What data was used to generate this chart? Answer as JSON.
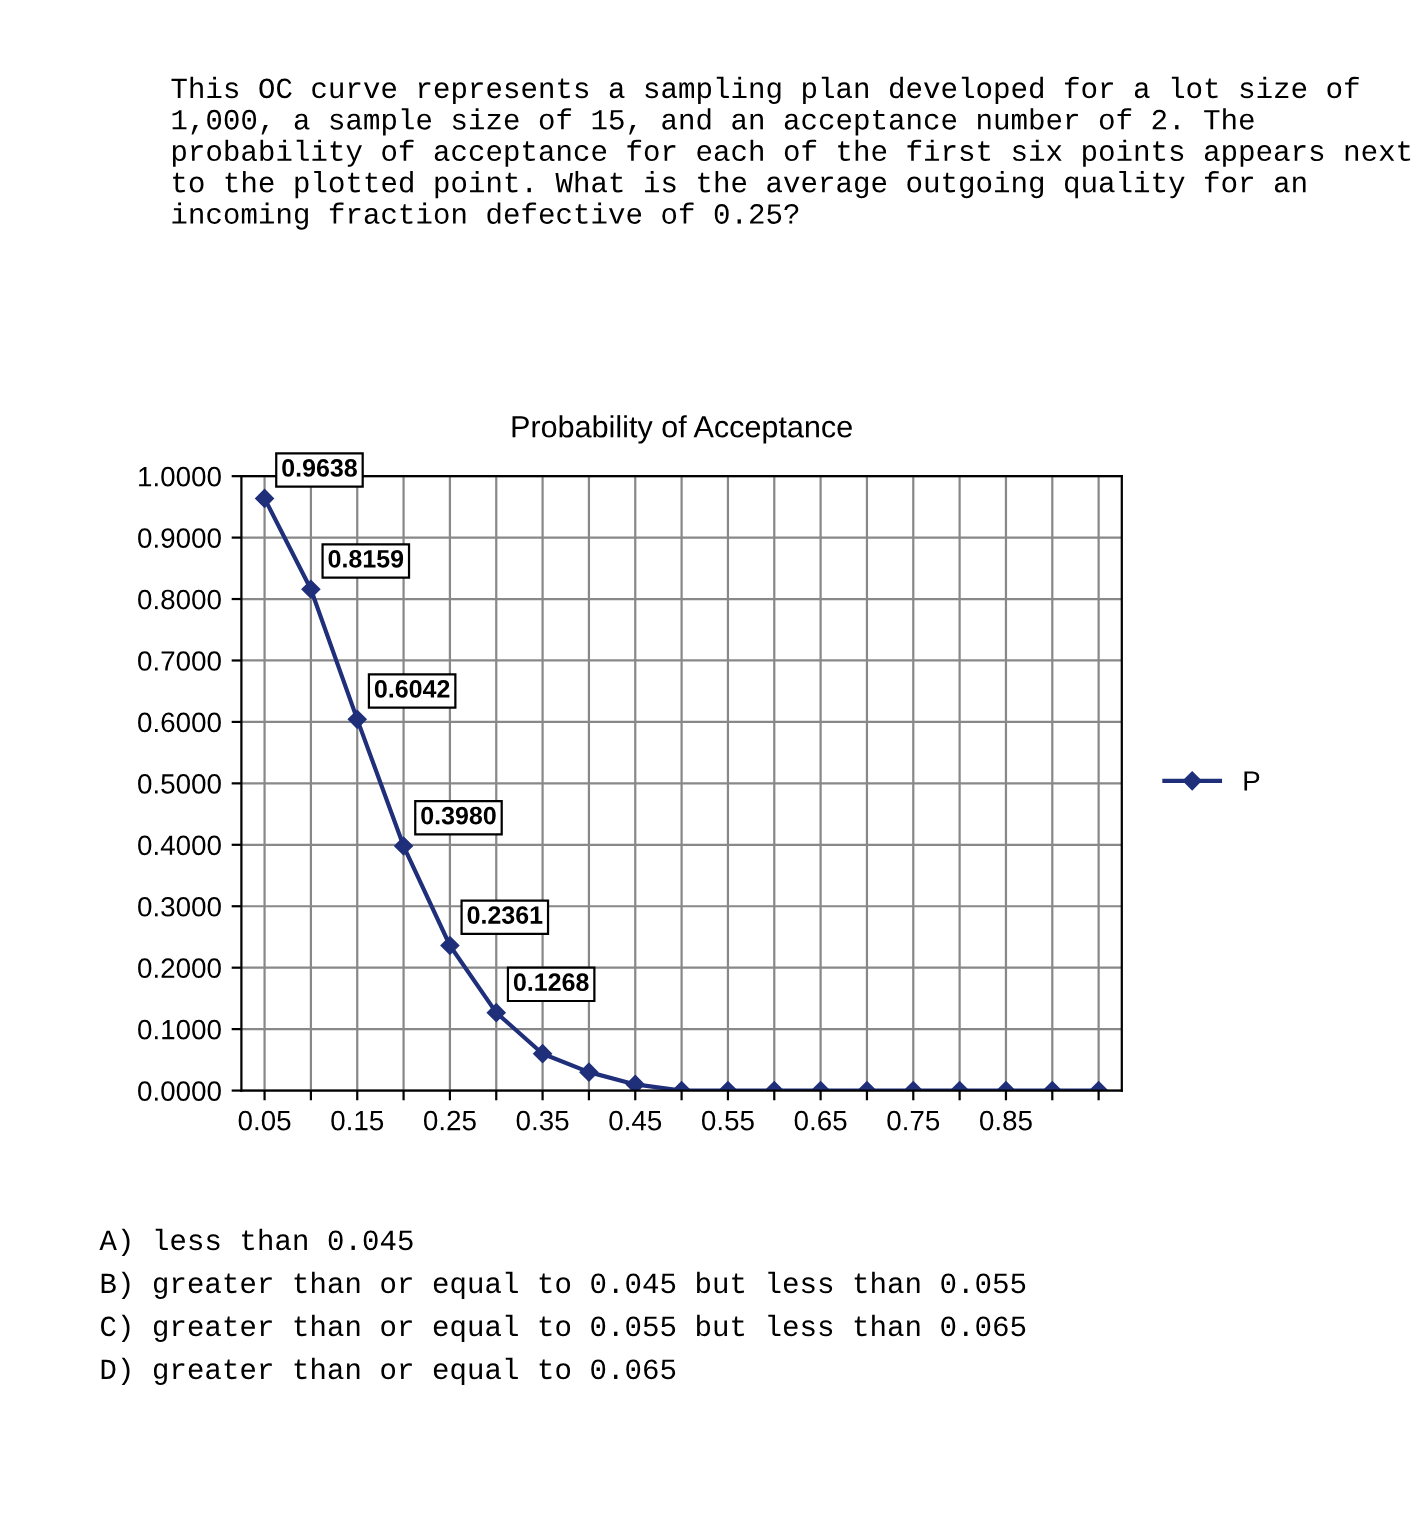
{
  "chart_data": {
    "type": "line",
    "title": "Probability of Acceptance",
    "categories": [
      "0.05",
      null,
      "0.15",
      null,
      "0.25",
      null,
      "0.35",
      null,
      "0.45",
      null,
      "0.55",
      null,
      "0.65",
      null,
      "0.75",
      null,
      "0.85",
      null,
      null
    ],
    "series": [
      {
        "name": "P",
        "color": "#1f2f7a",
        "values": [
          0.9638,
          0.8159,
          0.6042,
          0.398,
          0.2361,
          0.1268,
          0.06,
          0.03,
          0.01,
          0.0,
          0.0,
          0.0,
          0.0,
          0.0,
          0.0,
          0.0,
          0.0,
          0.0,
          0.0
        ],
        "value_labels": [
          "0.9638",
          "0.8159",
          "0.6042",
          "0.3980",
          "0.2361",
          "0.1268",
          null,
          null,
          null,
          null,
          null,
          null,
          null,
          null,
          null,
          null,
          null,
          null,
          null
        ]
      }
    ],
    "ylim": [
      0,
      1
    ],
    "yticks": [
      {
        "value": 0,
        "label": "0.0000"
      },
      {
        "value": 0.1,
        "label": "0.1000"
      },
      {
        "value": 0.2,
        "label": "0.2000"
      },
      {
        "value": 0.3,
        "label": "0.3000"
      },
      {
        "value": 0.4,
        "label": "0.4000"
      },
      {
        "value": 0.5,
        "label": "0.5000"
      },
      {
        "value": 0.6,
        "label": "0.6000"
      },
      {
        "value": 0.7,
        "label": "0.7000"
      },
      {
        "value": 0.8,
        "label": "0.8000"
      },
      {
        "value": 0.9,
        "label": "0.9000"
      },
      {
        "value": 1,
        "label": "1.0000"
      }
    ],
    "grid": true,
    "legend": "right",
    "marker": "diamond",
    "line_style": "solid",
    "annotations": [
      "This OC curve represents a sampling plan developed for a lot size of 1,000, a sample size of 15, and an acceptance number of 2. The probability of acceptance for each of the first six points appears next to the plotted point. What is the average outgoing quality for an incoming fraction defective of 0.25?",
      "A) less than 0.045",
      "B) greater than or equal to 0.045 but less than 0.055",
      "C) greater than or equal to 0.055 but less than 0.065",
      "D) greater than or equal to 0.065"
    ]
  }
}
